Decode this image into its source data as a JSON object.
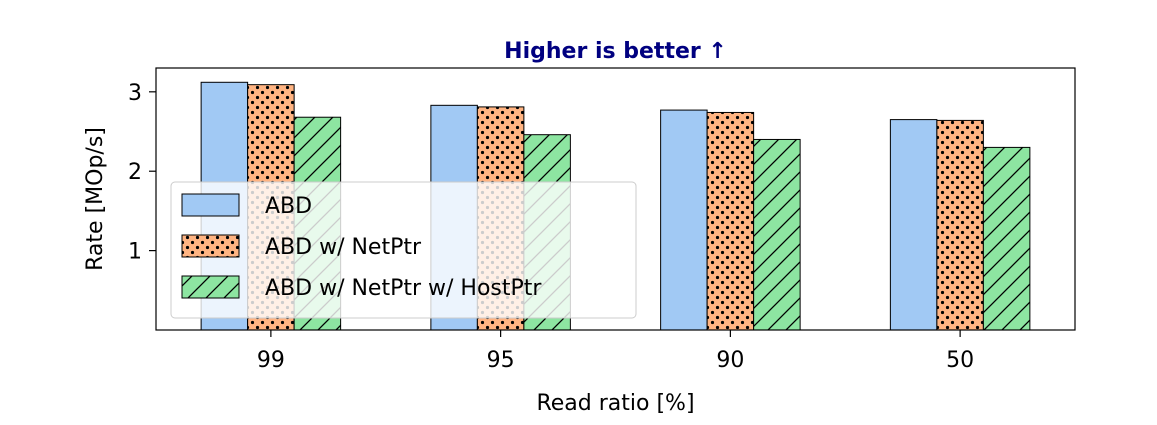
{
  "chart_data": {
    "type": "bar",
    "title": "Higher is better ↑",
    "title_color": "#000080",
    "xlabel": "Read ratio [%]",
    "ylabel": "Rate [MOp/s]",
    "categories": [
      "99",
      "95",
      "90",
      "50"
    ],
    "ylim": [
      0,
      3.3
    ],
    "yticks": [
      1,
      2,
      3
    ],
    "grid": false,
    "legend_position": "center-left",
    "series": [
      {
        "name": "ABD",
        "values": [
          3.12,
          2.83,
          2.77,
          2.65
        ],
        "color": "#a1c9f4",
        "hatch": "none"
      },
      {
        "name": "ABD w/ NetPtr",
        "values": [
          3.09,
          2.81,
          2.74,
          2.64
        ],
        "color": "#ffb482",
        "hatch": "dots"
      },
      {
        "name": "ABD w/ NetPtr w/ HostPtr",
        "values": [
          2.68,
          2.46,
          2.4,
          2.3
        ],
        "color": "#8de5a1",
        "hatch": "diagonal"
      }
    ]
  }
}
